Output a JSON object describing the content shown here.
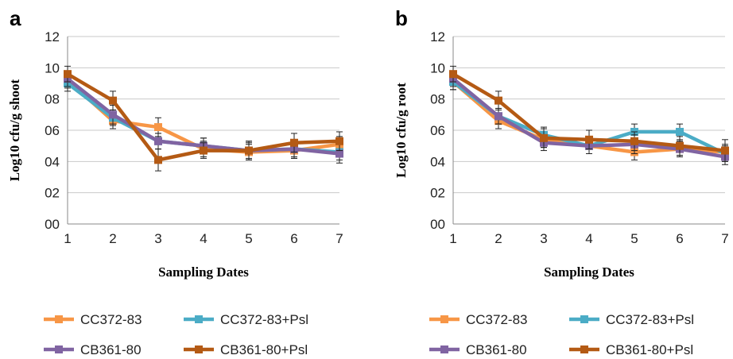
{
  "chart_data": [
    {
      "type": "line",
      "panel": "a",
      "title": "",
      "xlabel": "Sampling Dates",
      "ylabel": "Log10 cfu/g shoot",
      "categories": [
        "1",
        "2",
        "3",
        "4",
        "5",
        "6",
        "7"
      ],
      "y_ticks": [
        "00",
        "02",
        "04",
        "06",
        "08",
        "10",
        "12"
      ],
      "ylim": [
        0,
        12
      ],
      "grid": true,
      "legend_position": "bottom",
      "series": [
        {
          "name": "CC372-83",
          "color": "#f79646",
          "values": [
            9.2,
            6.6,
            6.2,
            4.8,
            4.6,
            4.7,
            5.1
          ],
          "errors": [
            0.5,
            0.5,
            0.6,
            0.5,
            0.5,
            0.5,
            0.5
          ]
        },
        {
          "name": "CC372-83+Psl",
          "color": "#4bacc6",
          "values": [
            9.0,
            6.8,
            5.3,
            5.0,
            4.7,
            4.8,
            4.6
          ],
          "errors": [
            0.5,
            0.5,
            0.5,
            0.5,
            0.5,
            0.5,
            0.5
          ]
        },
        {
          "name": "CB361-80",
          "color": "#8064a2",
          "values": [
            9.3,
            7.0,
            5.3,
            5.0,
            4.7,
            4.8,
            4.5
          ],
          "errors": [
            0.5,
            0.6,
            0.5,
            0.5,
            0.6,
            0.6,
            0.6
          ]
        },
        {
          "name": "CB361-80+Psl",
          "color": "#b45a14",
          "values": [
            9.6,
            7.9,
            4.1,
            4.7,
            4.7,
            5.2,
            5.3
          ],
          "errors": [
            0.5,
            0.6,
            0.7,
            0.5,
            0.6,
            0.6,
            0.6
          ]
        }
      ]
    },
    {
      "type": "line",
      "panel": "b",
      "title": "",
      "xlabel": "Sampling Dates",
      "ylabel": "Log10 cfu/g root",
      "categories": [
        "1",
        "2",
        "3",
        "4",
        "5",
        "6",
        "7"
      ],
      "y_ticks": [
        "00",
        "02",
        "04",
        "06",
        "08",
        "10",
        "12"
      ],
      "ylim": [
        0,
        12
      ],
      "grid": true,
      "legend_position": "bottom",
      "series": [
        {
          "name": "CC372-83",
          "color": "#f79646",
          "values": [
            9.1,
            6.6,
            5.4,
            5.0,
            4.6,
            4.8,
            4.6
          ],
          "errors": [
            0.5,
            0.5,
            0.5,
            0.5,
            0.5,
            0.5,
            0.5
          ]
        },
        {
          "name": "CC372-83+Psl",
          "color": "#4bacc6",
          "values": [
            9.1,
            6.9,
            5.7,
            5.0,
            5.9,
            5.9,
            4.5
          ],
          "errors": [
            0.5,
            0.5,
            0.5,
            0.5,
            0.5,
            0.5,
            0.5
          ]
        },
        {
          "name": "CB361-80",
          "color": "#8064a2",
          "values": [
            9.3,
            6.9,
            5.2,
            5.0,
            5.1,
            4.8,
            4.3
          ],
          "errors": [
            0.5,
            0.5,
            0.5,
            0.5,
            0.6,
            0.5,
            0.5
          ]
        },
        {
          "name": "CB361-80+Psl",
          "color": "#b45a14",
          "values": [
            9.6,
            7.9,
            5.5,
            5.4,
            5.3,
            5.0,
            4.7
          ],
          "errors": [
            0.5,
            0.6,
            0.6,
            0.6,
            0.6,
            0.6,
            0.7
          ]
        }
      ]
    }
  ]
}
